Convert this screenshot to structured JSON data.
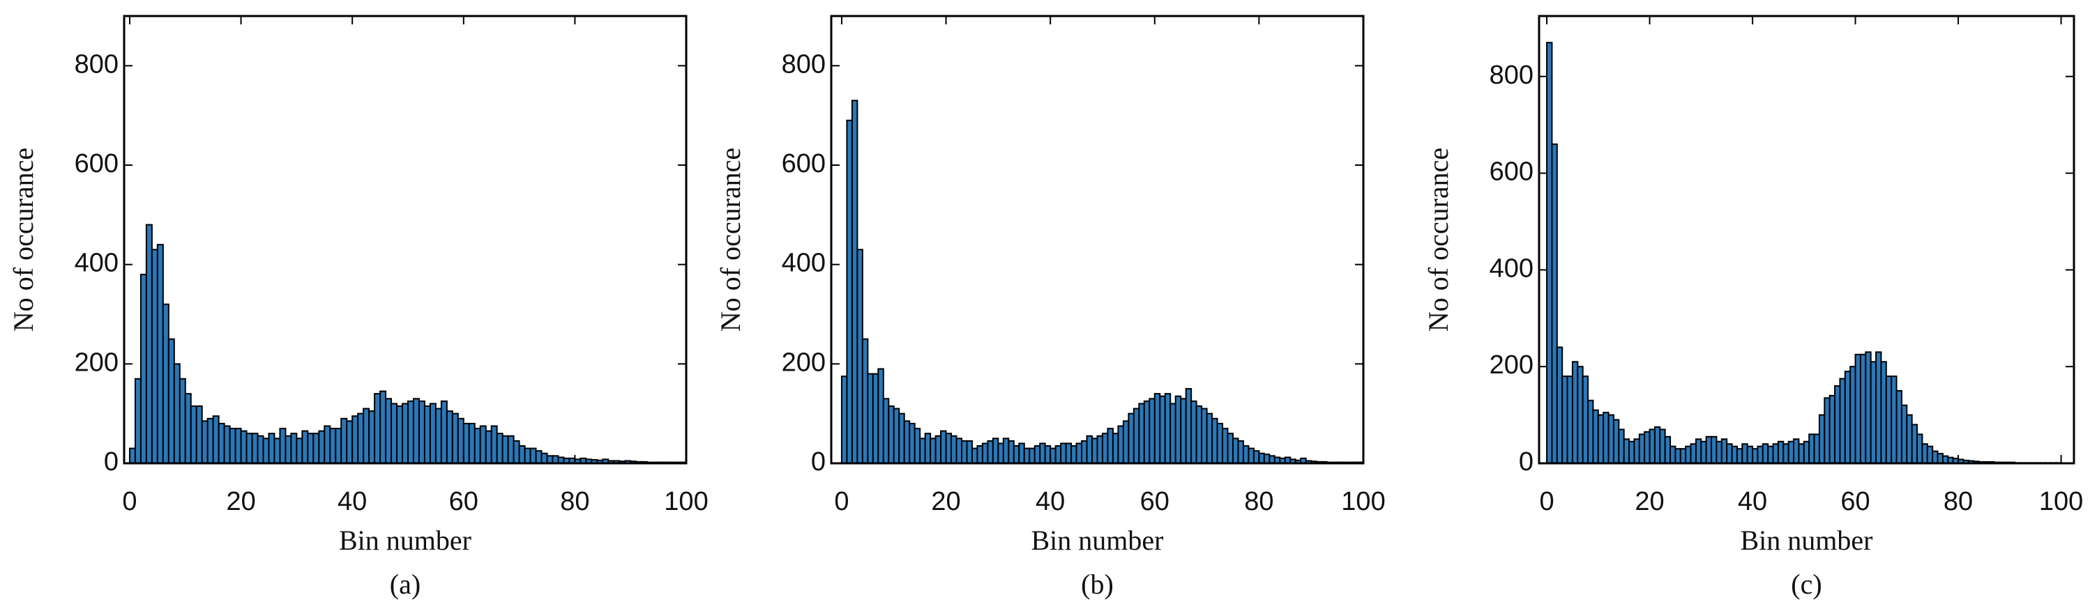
{
  "chart_data": [
    {
      "type": "histogram",
      "caption": "(a)",
      "x_label": "Bin number",
      "y_label": "No of occurance",
      "color": "#2a78b8",
      "bins": [
        0,
        1,
        2,
        3,
        4,
        5,
        6,
        7,
        8,
        9,
        10,
        11,
        12,
        13,
        14,
        15,
        16,
        17,
        18,
        19,
        20,
        21,
        22,
        23,
        24,
        25,
        26,
        27,
        28,
        29,
        30,
        31,
        32,
        33,
        34,
        35,
        36,
        37,
        38,
        39,
        40,
        41,
        42,
        43,
        44,
        45,
        46,
        47,
        48,
        49,
        50,
        51,
        52,
        53,
        54,
        55,
        56,
        57,
        58,
        59,
        60,
        61,
        62,
        63,
        64,
        65,
        66,
        67,
        68,
        69,
        70,
        71,
        72,
        73,
        74,
        75,
        76,
        77,
        78,
        79,
        80,
        81,
        82,
        83,
        84,
        85,
        86,
        87,
        88,
        89,
        90,
        91,
        92,
        93,
        94,
        95,
        96,
        97,
        98,
        99,
        100
      ],
      "values": [
        30,
        170,
        380,
        480,
        430,
        440,
        320,
        250,
        200,
        170,
        140,
        115,
        115,
        85,
        90,
        95,
        80,
        75,
        70,
        70,
        65,
        60,
        60,
        55,
        50,
        60,
        50,
        70,
        55,
        60,
        50,
        65,
        60,
        60,
        65,
        75,
        70,
        70,
        90,
        85,
        95,
        100,
        110,
        105,
        140,
        145,
        130,
        120,
        115,
        120,
        125,
        130,
        125,
        115,
        120,
        110,
        125,
        105,
        100,
        90,
        80,
        80,
        70,
        75,
        65,
        75,
        60,
        55,
        55,
        45,
        35,
        30,
        30,
        25,
        20,
        15,
        15,
        12,
        10,
        10,
        8,
        10,
        8,
        7,
        6,
        8,
        5,
        5,
        4,
        5,
        4,
        3,
        3,
        2,
        2,
        2,
        2,
        2,
        2,
        2
      ],
      "xlim": [
        -1,
        100
      ],
      "ylim": [
        0,
        900
      ],
      "xticks": [
        0,
        20,
        40,
        60,
        80,
        100
      ],
      "yticks": [
        0,
        200,
        400,
        600,
        800
      ]
    },
    {
      "type": "histogram",
      "caption": "(b)",
      "x_label": "Bin number",
      "y_label": "No of occurance",
      "color": "#2a78b8",
      "bins": [
        0,
        1,
        2,
        3,
        4,
        5,
        6,
        7,
        8,
        9,
        10,
        11,
        12,
        13,
        14,
        15,
        16,
        17,
        18,
        19,
        20,
        21,
        22,
        23,
        24,
        25,
        26,
        27,
        28,
        29,
        30,
        31,
        32,
        33,
        34,
        35,
        36,
        37,
        38,
        39,
        40,
        41,
        42,
        43,
        44,
        45,
        46,
        47,
        48,
        49,
        50,
        51,
        52,
        53,
        54,
        55,
        56,
        57,
        58,
        59,
        60,
        61,
        62,
        63,
        64,
        65,
        66,
        67,
        68,
        69,
        70,
        71,
        72,
        73,
        74,
        75,
        76,
        77,
        78,
        79,
        80,
        81,
        82,
        83,
        84,
        85,
        86,
        87,
        88,
        89,
        90,
        91,
        92,
        93,
        94,
        95,
        96,
        97,
        98,
        99,
        100
      ],
      "values": [
        175,
        690,
        730,
        430,
        250,
        180,
        180,
        190,
        130,
        115,
        110,
        100,
        85,
        80,
        70,
        50,
        60,
        50,
        55,
        65,
        60,
        55,
        50,
        45,
        45,
        30,
        35,
        40,
        45,
        50,
        40,
        50,
        45,
        35,
        40,
        30,
        30,
        35,
        40,
        35,
        30,
        35,
        40,
        40,
        35,
        40,
        45,
        55,
        50,
        55,
        60,
        70,
        60,
        75,
        85,
        100,
        110,
        120,
        125,
        130,
        140,
        135,
        140,
        120,
        135,
        130,
        150,
        125,
        115,
        110,
        100,
        90,
        80,
        70,
        60,
        50,
        45,
        35,
        30,
        25,
        20,
        18,
        15,
        12,
        10,
        12,
        8,
        6,
        10,
        5,
        4,
        3,
        3,
        2,
        2,
        2,
        2,
        2,
        2,
        2
      ],
      "xlim": [
        -2,
        100
      ],
      "ylim": [
        0,
        900
      ],
      "xticks": [
        0,
        20,
        40,
        60,
        80,
        100
      ],
      "yticks": [
        0,
        200,
        400,
        600,
        800
      ]
    },
    {
      "type": "histogram",
      "caption": "(c)",
      "x_label": "Bin number",
      "y_label": "No of occurance",
      "color": "#2a78b8",
      "bins": [
        0,
        1,
        2,
        3,
        4,
        5,
        6,
        7,
        8,
        9,
        10,
        11,
        12,
        13,
        14,
        15,
        16,
        17,
        18,
        19,
        20,
        21,
        22,
        23,
        24,
        25,
        26,
        27,
        28,
        29,
        30,
        31,
        32,
        33,
        34,
        35,
        36,
        37,
        38,
        39,
        40,
        41,
        42,
        43,
        44,
        45,
        46,
        47,
        48,
        49,
        50,
        51,
        52,
        53,
        54,
        55,
        56,
        57,
        58,
        59,
        60,
        61,
        62,
        63,
        64,
        65,
        66,
        67,
        68,
        69,
        70,
        71,
        72,
        73,
        74,
        75,
        76,
        77,
        78,
        79,
        80,
        81,
        82,
        83,
        84,
        85,
        86,
        87,
        88,
        89,
        90,
        91,
        92,
        93,
        94,
        95,
        96,
        97,
        98,
        99,
        100
      ],
      "values": [
        870,
        660,
        240,
        180,
        180,
        210,
        200,
        180,
        130,
        110,
        100,
        105,
        100,
        90,
        70,
        50,
        45,
        50,
        60,
        65,
        70,
        75,
        70,
        55,
        35,
        30,
        30,
        35,
        40,
        50,
        45,
        55,
        55,
        45,
        50,
        40,
        35,
        30,
        40,
        35,
        30,
        35,
        40,
        35,
        40,
        45,
        40,
        45,
        50,
        40,
        45,
        60,
        60,
        100,
        135,
        140,
        160,
        175,
        190,
        200,
        225,
        225,
        230,
        210,
        230,
        210,
        180,
        180,
        150,
        120,
        100,
        80,
        60,
        40,
        35,
        25,
        20,
        15,
        12,
        10,
        8,
        6,
        5,
        4,
        3,
        3,
        3,
        2,
        2,
        2,
        2,
        1,
        1,
        1,
        1,
        1,
        1,
        1,
        1,
        1
      ],
      "xlim": [
        -1.5,
        102.5
      ],
      "ylim": [
        0,
        925
      ],
      "xticks": [
        0,
        20,
        40,
        60,
        80,
        100
      ],
      "yticks": [
        0,
        200,
        400,
        600,
        800
      ]
    }
  ]
}
